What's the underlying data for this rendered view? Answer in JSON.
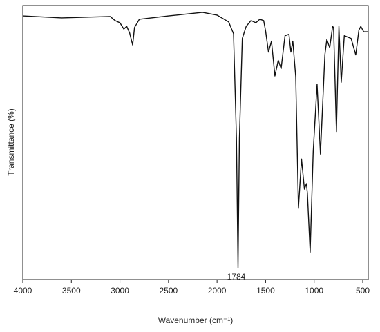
{
  "chart_data": {
    "type": "line",
    "x_label": "Wavenumber (cm⁻¹)",
    "y_label": "Transmittance (%)",
    "annotations": [
      "1784"
    ],
    "xlim": [
      4000,
      443
    ],
    "xticks": [
      4000,
      3500,
      3000,
      2500,
      2000,
      1500,
      1000,
      500
    ],
    "ylim": [
      0,
      100
    ],
    "series": [
      {
        "color": "#111111",
        "x": [
          4000,
          3600,
          3100,
          3050,
          3000,
          2960,
          2930,
          2900,
          2869,
          2850,
          2800,
          2500,
          2150,
          2000,
          1880,
          1830,
          1800,
          1784,
          1770,
          1740,
          1700,
          1650,
          1600,
          1560,
          1520,
          1500,
          1470,
          1440,
          1404,
          1370,
          1340,
          1300,
          1260,
          1240,
          1220,
          1190,
          1162,
          1130,
          1100,
          1080,
          1070,
          1041,
          1010,
          970,
          935,
          890,
          870,
          840,
          810,
          800,
          771,
          745,
          721,
          690,
          620,
          572,
          540,
          520,
          490,
          443
        ],
        "values": [
          96.2,
          95.5,
          96,
          94.5,
          93.7,
          91.4,
          92.4,
          90,
          85.6,
          92,
          95,
          96.2,
          97.5,
          96.5,
          94,
          89.7,
          51.6,
          4.3,
          51.6,
          88,
          92.4,
          94.5,
          93.7,
          95,
          94.5,
          90.7,
          83,
          87,
          74.3,
          80,
          77,
          89,
          89.5,
          83,
          87,
          74,
          26,
          44,
          33,
          35,
          31.5,
          10,
          46.6,
          71.3,
          45.8,
          82,
          87.6,
          84.6,
          92.4,
          91.9,
          54,
          92.4,
          72,
          89,
          88,
          82,
          91,
          92.4,
          90.4,
          90.4
        ]
      }
    ]
  }
}
